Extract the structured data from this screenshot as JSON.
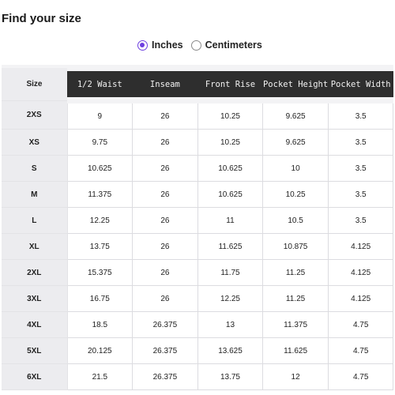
{
  "title": "Find your size",
  "units": {
    "options": [
      {
        "label": "Inches",
        "selected": true
      },
      {
        "label": "Centimeters",
        "selected": false
      }
    ]
  },
  "colors": {
    "accent": "#6d3fe0",
    "header_dark": "#2e2e2e",
    "size_column_bg": "#ececef"
  },
  "table": {
    "columns": [
      "Size",
      "1/2 Waist",
      "Inseam",
      "Front Rise",
      "Pocket Height",
      "Pocket Width"
    ],
    "rows": [
      [
        "2XS",
        "9",
        "26",
        "10.25",
        "9.625",
        "3.5"
      ],
      [
        "XS",
        "9.75",
        "26",
        "10.25",
        "9.625",
        "3.5"
      ],
      [
        "S",
        "10.625",
        "26",
        "10.625",
        "10",
        "3.5"
      ],
      [
        "M",
        "11.375",
        "26",
        "10.625",
        "10.25",
        "3.5"
      ],
      [
        "L",
        "12.25",
        "26",
        "11",
        "10.5",
        "3.5"
      ],
      [
        "XL",
        "13.75",
        "26",
        "11.625",
        "10.875",
        "4.125"
      ],
      [
        "2XL",
        "15.375",
        "26",
        "11.75",
        "11.25",
        "4.125"
      ],
      [
        "3XL",
        "16.75",
        "26",
        "12.25",
        "11.25",
        "4.125"
      ],
      [
        "4XL",
        "18.5",
        "26.375",
        "13",
        "11.375",
        "4.75"
      ],
      [
        "5XL",
        "20.125",
        "26.375",
        "13.625",
        "11.625",
        "4.75"
      ],
      [
        "6XL",
        "21.5",
        "26.375",
        "13.75",
        "12",
        "4.75"
      ]
    ]
  }
}
